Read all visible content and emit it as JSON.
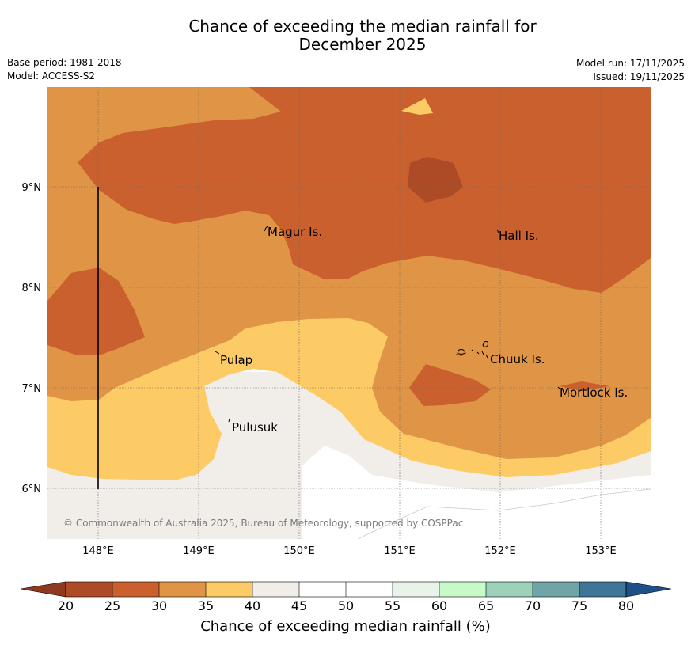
{
  "figure": {
    "title_line1": "Chance of exceeding the median rainfall for",
    "title_line2": "December 2025",
    "base_period": "Base period: 1981-2018",
    "model": "Model: ACCESS-S2",
    "model_run": "Model run: 17/11/2025",
    "issued": "Issued: 19/11/2025",
    "copyright": "© Commonwealth of Australia 2025, Bureau of Meteorology, supported by COSPPac"
  },
  "map": {
    "lat_labels": [
      "9°N",
      "8°N",
      "7°N",
      "6°N"
    ],
    "lon_labels": [
      "148°E",
      "149°E",
      "150°E",
      "151°E",
      "152°E",
      "153°E"
    ],
    "places": [
      {
        "name": "Magur Is."
      },
      {
        "name": "Hall Is."
      },
      {
        "name": "Pulap"
      },
      {
        "name": "Chuuk Is."
      },
      {
        "name": "Mortlock Is."
      },
      {
        "name": "Pulusuk"
      }
    ]
  },
  "colorbar": {
    "title": "Chance of exceeding median rainfall (%)",
    "ticks": [
      "20",
      "25",
      "30",
      "35",
      "40",
      "45",
      "50",
      "55",
      "60",
      "65",
      "70",
      "75",
      "80"
    ],
    "colors": [
      "#ad4b27",
      "#c9602e",
      "#e09446",
      "#fdcb65",
      "#f1ede8",
      "#ffffff",
      "#ffffff",
      "#eaf3ea",
      "#c8fac8",
      "#9dd1b9",
      "#6fa5a7",
      "#3f7596"
    ],
    "under_color": "#8e3a1f",
    "over_color": "#1d4f88"
  }
}
